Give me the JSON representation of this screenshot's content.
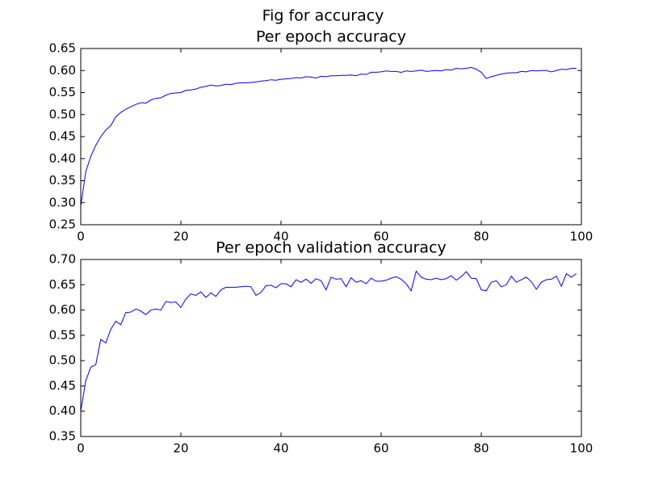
{
  "title": "Fig for accuracy",
  "chart_data": [
    {
      "type": "line",
      "title": "Per epoch accuracy",
      "color": "#0000ff",
      "x": [
        0,
        1,
        2,
        3,
        4,
        5,
        6,
        7,
        8,
        9,
        10,
        11,
        12,
        13,
        14,
        15,
        16,
        17,
        18,
        19,
        20,
        21,
        22,
        23,
        24,
        25,
        26,
        27,
        28,
        29,
        30,
        31,
        32,
        33,
        34,
        35,
        36,
        37,
        38,
        39,
        40,
        41,
        42,
        43,
        44,
        45,
        46,
        47,
        48,
        49,
        50,
        51,
        52,
        53,
        54,
        55,
        56,
        57,
        58,
        59,
        60,
        61,
        62,
        63,
        64,
        65,
        66,
        67,
        68,
        69,
        70,
        71,
        72,
        73,
        74,
        75,
        76,
        77,
        78,
        79,
        80,
        81,
        82,
        83,
        84,
        85,
        86,
        87,
        88,
        89,
        90,
        91,
        92,
        93,
        94,
        95,
        96,
        97,
        98,
        99
      ],
      "values": [
        0.292,
        0.37,
        0.405,
        0.43,
        0.45,
        0.465,
        0.475,
        0.495,
        0.505,
        0.512,
        0.518,
        0.523,
        0.527,
        0.526,
        0.533,
        0.537,
        0.538,
        0.544,
        0.548,
        0.549,
        0.55,
        0.555,
        0.556,
        0.558,
        0.562,
        0.564,
        0.567,
        0.565,
        0.566,
        0.569,
        0.568,
        0.571,
        0.572,
        0.572,
        0.573,
        0.574,
        0.576,
        0.577,
        0.579,
        0.578,
        0.58,
        0.581,
        0.582,
        0.584,
        0.583,
        0.586,
        0.585,
        0.583,
        0.587,
        0.586,
        0.588,
        0.588,
        0.589,
        0.589,
        0.59,
        0.588,
        0.592,
        0.591,
        0.596,
        0.596,
        0.597,
        0.599,
        0.598,
        0.598,
        0.596,
        0.599,
        0.598,
        0.599,
        0.601,
        0.598,
        0.599,
        0.6,
        0.599,
        0.602,
        0.601,
        0.605,
        0.604,
        0.605,
        0.607,
        0.603,
        0.596,
        0.582,
        0.586,
        0.589,
        0.592,
        0.594,
        0.595,
        0.595,
        0.598,
        0.597,
        0.6,
        0.599,
        0.6,
        0.6,
        0.597,
        0.6,
        0.603,
        0.602,
        0.605,
        0.605
      ],
      "xlim": [
        0,
        100
      ],
      "xticks": [
        0,
        20,
        40,
        60,
        80,
        100
      ],
      "ylim": [
        0.25,
        0.65
      ],
      "yticks": [
        0.25,
        {
          "value": 0.3,
          "label": "0.30"
        },
        0.35,
        {
          "value": 0.4,
          "label": "0.40"
        },
        0.45,
        {
          "value": 0.5,
          "label": "0.50"
        },
        0.55,
        {
          "value": 0.6,
          "label": "0.60"
        },
        0.65
      ]
    },
    {
      "type": "line",
      "title": "Per epoch validation accuracy",
      "color": "#0000ff",
      "x": [
        0,
        1,
        2,
        3,
        4,
        5,
        6,
        7,
        8,
        9,
        10,
        11,
        12,
        13,
        14,
        15,
        16,
        17,
        18,
        19,
        20,
        21,
        22,
        23,
        24,
        25,
        26,
        27,
        28,
        29,
        30,
        31,
        32,
        33,
        34,
        35,
        36,
        37,
        38,
        39,
        40,
        41,
        42,
        43,
        44,
        45,
        46,
        47,
        48,
        49,
        50,
        51,
        52,
        53,
        54,
        55,
        56,
        57,
        58,
        59,
        60,
        61,
        62,
        63,
        64,
        65,
        66,
        67,
        68,
        69,
        70,
        71,
        72,
        73,
        74,
        75,
        76,
        77,
        78,
        79,
        80,
        81,
        82,
        83,
        84,
        85,
        86,
        87,
        88,
        89,
        90,
        91,
        92,
        93,
        94,
        95,
        96,
        97,
        98,
        99
      ],
      "values": [
        0.4,
        0.46,
        0.487,
        0.492,
        0.542,
        0.535,
        0.562,
        0.578,
        0.571,
        0.595,
        0.596,
        0.602,
        0.598,
        0.591,
        0.6,
        0.602,
        0.6,
        0.617,
        0.615,
        0.616,
        0.605,
        0.622,
        0.632,
        0.629,
        0.636,
        0.625,
        0.634,
        0.627,
        0.64,
        0.645,
        0.645,
        0.645,
        0.646,
        0.647,
        0.646,
        0.629,
        0.635,
        0.648,
        0.649,
        0.644,
        0.652,
        0.652,
        0.646,
        0.66,
        0.655,
        0.661,
        0.653,
        0.662,
        0.658,
        0.64,
        0.665,
        0.661,
        0.662,
        0.646,
        0.664,
        0.655,
        0.658,
        0.652,
        0.663,
        0.657,
        0.657,
        0.659,
        0.663,
        0.666,
        0.661,
        0.652,
        0.638,
        0.677,
        0.665,
        0.661,
        0.66,
        0.663,
        0.66,
        0.662,
        0.668,
        0.659,
        0.666,
        0.676,
        0.663,
        0.662,
        0.64,
        0.638,
        0.655,
        0.658,
        0.646,
        0.65,
        0.667,
        0.655,
        0.66,
        0.665,
        0.656,
        0.641,
        0.655,
        0.66,
        0.661,
        0.667,
        0.647,
        0.672,
        0.665,
        0.672
      ],
      "xlim": [
        0,
        100
      ],
      "xticks": [
        0,
        20,
        40,
        60,
        80,
        100
      ],
      "ylim": [
        0.35,
        0.7
      ],
      "yticks": [
        0.35,
        {
          "value": 0.4,
          "label": "0.40"
        },
        0.45,
        {
          "value": 0.5,
          "label": "0.50"
        },
        0.55,
        {
          "value": 0.6,
          "label": "0.60"
        },
        0.65,
        {
          "value": 0.7,
          "label": "0.70"
        }
      ]
    }
  ]
}
